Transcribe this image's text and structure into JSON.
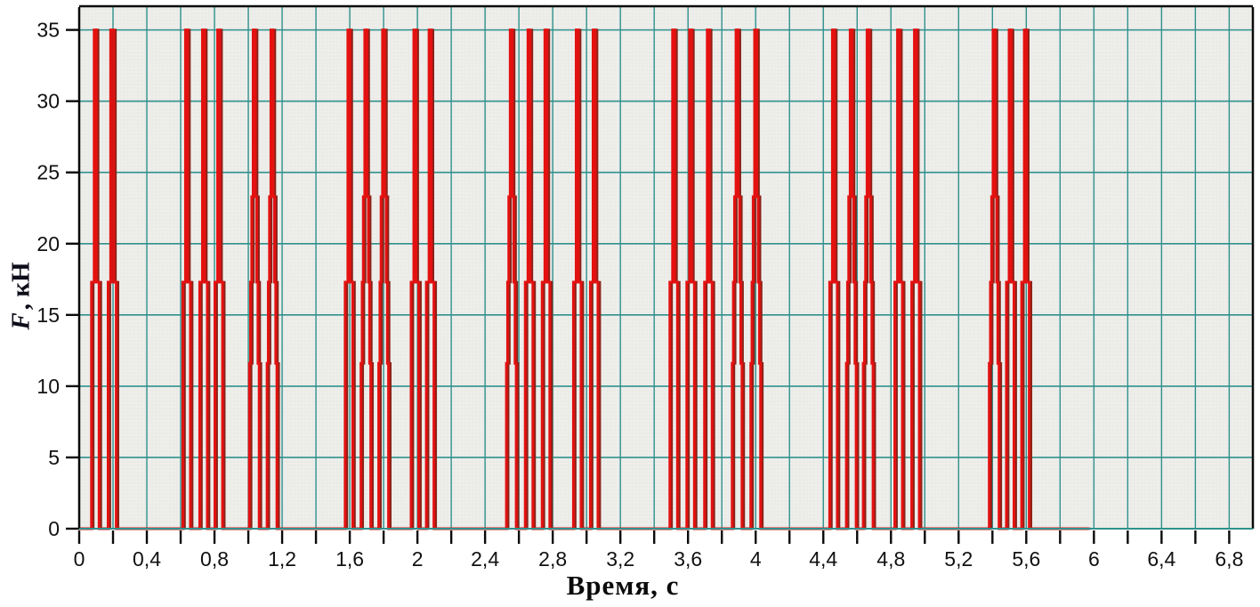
{
  "chart_data": {
    "type": "line",
    "title": "",
    "xlabel": "Время, с",
    "ylabel": "F, кН",
    "ylabel_symbol": "F",
    "ylabel_units": ", кН",
    "xlim": [
      0,
      6.94
    ],
    "ylim": [
      0,
      36.6
    ],
    "grid": true,
    "legend": false,
    "x_tick_step": 0.2,
    "x_label_step": 0.4,
    "x_tick_labels": [
      "0",
      "0,4",
      "0,8",
      "1,2",
      "1,6",
      "2",
      "2,4",
      "2,8",
      "3,2",
      "3,6",
      "4",
      "4,4",
      "4,8",
      "5,2",
      "5,6",
      "6",
      "6,4",
      "6,8"
    ],
    "y_tick_step": 5,
    "y_tick_labels": [
      "0",
      "5",
      "10",
      "15",
      "20",
      "25",
      "30",
      "35"
    ],
    "colors": {
      "pulse_main": "#e31110",
      "pulse_shadow": "#8b2218",
      "grid": "#2f918c",
      "plot_background": "#ebebe8",
      "axis": "#0a0a0a",
      "text": "#111111"
    },
    "pulse_levels": {
      "peak": 35,
      "upper_step": 23.3,
      "mid_step": 17.3,
      "lower_step": 11.6
    },
    "pulse_profiles": {
      "A": [
        [
          0.0225,
          17.3
        ],
        [
          0.0065,
          35
        ]
      ],
      "B": [
        [
          0.029,
          11.6
        ],
        [
          0.022,
          17.3
        ],
        [
          0.015,
          23.3
        ],
        [
          0.0065,
          35
        ]
      ],
      "W": [
        [
          0.024,
          17.3
        ],
        [
          0.009,
          35
        ]
      ]
    },
    "pulses": [
      {
        "t": 0.095,
        "profile": "A"
      },
      {
        "t": 0.195,
        "profile": "W"
      },
      {
        "t": 0.635,
        "profile": "A"
      },
      {
        "t": 0.735,
        "profile": "A"
      },
      {
        "t": 0.825,
        "profile": "A"
      },
      {
        "t": 1.035,
        "profile": "B"
      },
      {
        "t": 1.14,
        "profile": "B"
      },
      {
        "t": 1.595,
        "profile": "A"
      },
      {
        "t": 1.695,
        "profile": "B"
      },
      {
        "t": 1.8,
        "profile": "B"
      },
      {
        "t": 1.985,
        "profile": "A"
      },
      {
        "t": 2.075,
        "profile": "A"
      },
      {
        "t": 2.555,
        "profile": "B"
      },
      {
        "t": 2.66,
        "profile": "A"
      },
      {
        "t": 2.76,
        "profile": "A"
      },
      {
        "t": 2.945,
        "profile": "A"
      },
      {
        "t": 3.045,
        "profile": "A"
      },
      {
        "t": 3.515,
        "profile": "A"
      },
      {
        "t": 3.615,
        "profile": "A"
      },
      {
        "t": 3.72,
        "profile": "A"
      },
      {
        "t": 3.89,
        "profile": "B"
      },
      {
        "t": 4.0,
        "profile": "B"
      },
      {
        "t": 4.46,
        "profile": "A"
      },
      {
        "t": 4.565,
        "profile": "B"
      },
      {
        "t": 4.665,
        "profile": "B"
      },
      {
        "t": 4.845,
        "profile": "A"
      },
      {
        "t": 4.945,
        "profile": "A"
      },
      {
        "t": 5.41,
        "profile": "B"
      },
      {
        "t": 5.505,
        "profile": "A"
      },
      {
        "t": 5.595,
        "profile": "A"
      }
    ],
    "shadow_offset_s": 0.011,
    "signal_start": 0,
    "signal_end": 5.97
  }
}
